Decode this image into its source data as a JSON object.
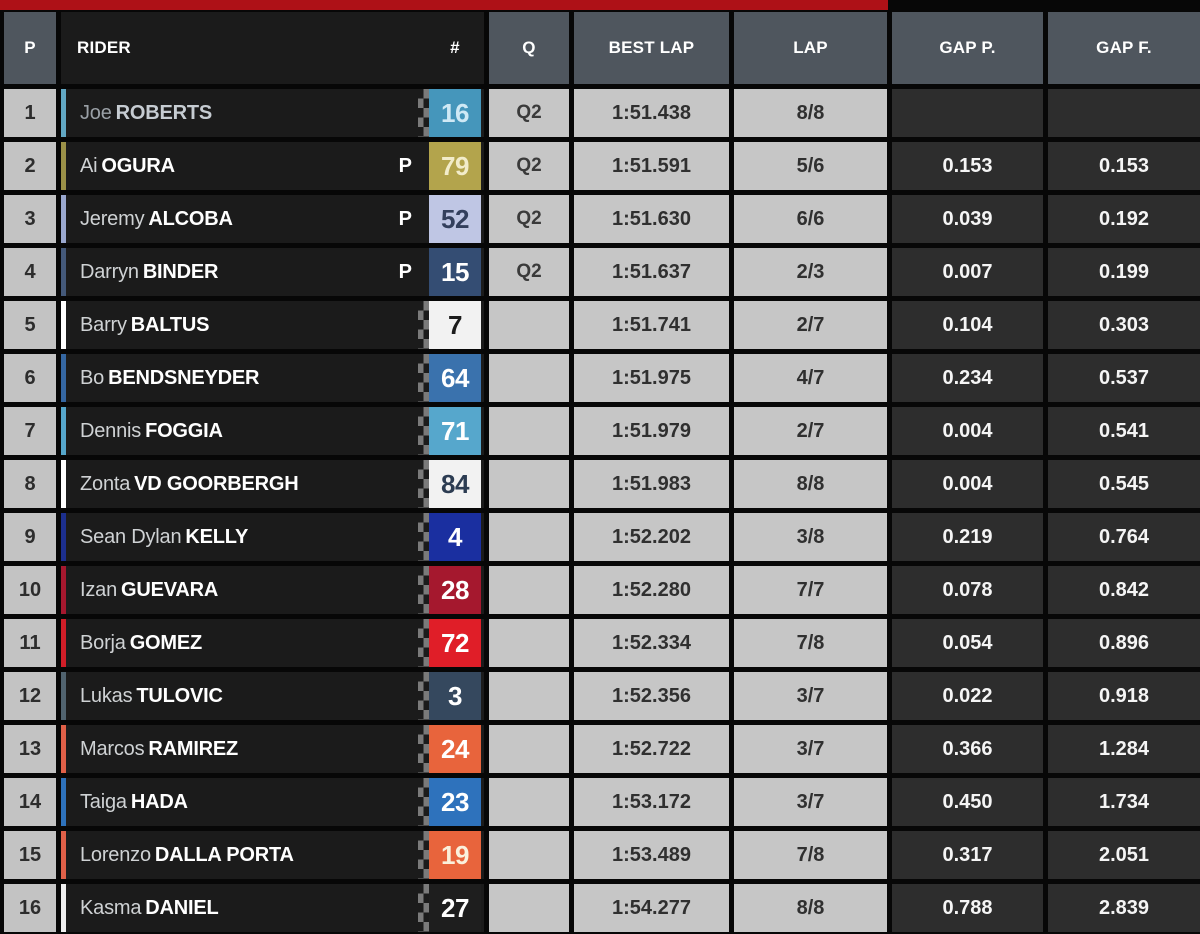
{
  "topbar": {
    "accent_color": "#ae1117"
  },
  "header": {
    "p": "P",
    "rider": "RIDER",
    "number": "#",
    "q": "Q",
    "best_lap": "BEST LAP",
    "lap": "LAP",
    "gap_prev": "GAP P.",
    "gap_first": "GAP F."
  },
  "colors": {
    "header_bg": "#4f565e",
    "row_dark_bg": "#1b1b1b",
    "light_cell_bg": "#c6c6c6",
    "leader_cell_bg": "#9b9b9b",
    "gap_cell_bg": "#2d2d2d",
    "position_cell_bg": "#c3c3c3"
  },
  "rows": [
    {
      "pos": "1",
      "first": "Joe",
      "last": "ROBERTS",
      "pit": "",
      "number": "16",
      "q": "Q2",
      "best_lap": "1:51.438",
      "lap": "8/8",
      "gap_p": "",
      "gap_f": "",
      "plate_bg": "#4596bb",
      "plate_fg": "#cfe9f5",
      "stripe": "#62a8c4",
      "leader": true,
      "checker": true
    },
    {
      "pos": "2",
      "first": "Ai",
      "last": "OGURA",
      "pit": "P",
      "number": "79",
      "q": "Q2",
      "best_lap": "1:51.591",
      "lap": "5/6",
      "gap_p": "0.153",
      "gap_f": "0.153",
      "plate_bg": "#b3a44c",
      "plate_fg": "#f2ecca",
      "stripe": "#9b9148",
      "leader": false,
      "checker": false
    },
    {
      "pos": "3",
      "first": "Jeremy",
      "last": "ALCOBA",
      "pit": "P",
      "number": "52",
      "q": "Q2",
      "best_lap": "1:51.630",
      "lap": "6/6",
      "gap_p": "0.039",
      "gap_f": "0.192",
      "plate_bg": "#bfc6e4",
      "plate_fg": "#333f5c",
      "stripe": "#9aa8cf",
      "leader": false,
      "checker": false
    },
    {
      "pos": "4",
      "first": "Darryn",
      "last": "BINDER",
      "pit": "P",
      "number": "15",
      "q": "Q2",
      "best_lap": "1:51.637",
      "lap": "2/3",
      "gap_p": "0.007",
      "gap_f": "0.199",
      "plate_bg": "#344d73",
      "plate_fg": "#ffffff",
      "stripe": "#44597a",
      "leader": false,
      "checker": false
    },
    {
      "pos": "5",
      "first": "Barry",
      "last": "BALTUS",
      "pit": "",
      "number": "7",
      "q": "",
      "best_lap": "1:51.741",
      "lap": "2/7",
      "gap_p": "0.104",
      "gap_f": "0.303",
      "plate_bg": "#f2f2f2",
      "plate_fg": "#1c1c1c",
      "stripe": "#ffffff",
      "leader": false,
      "checker": true
    },
    {
      "pos": "6",
      "first": "Bo",
      "last": "BENDSNEYDER",
      "pit": "",
      "number": "64",
      "q": "",
      "best_lap": "1:51.975",
      "lap": "4/7",
      "gap_p": "0.234",
      "gap_f": "0.537",
      "plate_bg": "#3a72ad",
      "plate_fg": "#ffffff",
      "stripe": "#3567a2",
      "leader": false,
      "checker": true
    },
    {
      "pos": "7",
      "first": "Dennis",
      "last": "FOGGIA",
      "pit": "",
      "number": "71",
      "q": "",
      "best_lap": "1:51.979",
      "lap": "2/7",
      "gap_p": "0.004",
      "gap_f": "0.541",
      "plate_bg": "#56a7cc",
      "plate_fg": "#ffffff",
      "stripe": "#56a7cc",
      "leader": false,
      "checker": true
    },
    {
      "pos": "8",
      "first": "Zonta",
      "last": "VD GOORBERGH",
      "pit": "",
      "number": "84",
      "q": "",
      "best_lap": "1:51.983",
      "lap": "8/8",
      "gap_p": "0.004",
      "gap_f": "0.545",
      "plate_bg": "#f2f2f2",
      "plate_fg": "#2c3c52",
      "stripe": "#ffffff",
      "leader": false,
      "checker": true
    },
    {
      "pos": "9",
      "first": "Sean Dylan",
      "last": "KELLY",
      "pit": "",
      "number": "4",
      "q": "",
      "best_lap": "1:52.202",
      "lap": "3/8",
      "gap_p": "0.219",
      "gap_f": "0.764",
      "plate_bg": "#1a2fa0",
      "plate_fg": "#ffffff",
      "stripe": "#1c2f8e",
      "leader": false,
      "checker": true
    },
    {
      "pos": "10",
      "first": "Izan",
      "last": "GUEVARA",
      "pit": "",
      "number": "28",
      "q": "",
      "best_lap": "1:52.280",
      "lap": "7/7",
      "gap_p": "0.078",
      "gap_f": "0.842",
      "plate_bg": "#a5182e",
      "plate_fg": "#ffffff",
      "stripe": "#a5182e",
      "leader": false,
      "checker": true
    },
    {
      "pos": "11",
      "first": "Borja",
      "last": "GOMEZ",
      "pit": "",
      "number": "72",
      "q": "",
      "best_lap": "1:52.334",
      "lap": "7/8",
      "gap_p": "0.054",
      "gap_f": "0.896",
      "plate_bg": "#e01e28",
      "plate_fg": "#ffffff",
      "stripe": "#d01e28",
      "leader": false,
      "checker": true
    },
    {
      "pos": "12",
      "first": "Lukas",
      "last": "TULOVIC",
      "pit": "",
      "number": "3",
      "q": "",
      "best_lap": "1:52.356",
      "lap": "3/7",
      "gap_p": "0.022",
      "gap_f": "0.918",
      "plate_bg": "#35485e",
      "plate_fg": "#ffffff",
      "stripe": "#51636f",
      "leader": false,
      "checker": true
    },
    {
      "pos": "13",
      "first": "Marcos",
      "last": "RAMIREZ",
      "pit": "",
      "number": "24",
      "q": "",
      "best_lap": "1:52.722",
      "lap": "3/7",
      "gap_p": "0.366",
      "gap_f": "1.284",
      "plate_bg": "#e8643c",
      "plate_fg": "#ffffff",
      "stripe": "#e06048",
      "leader": false,
      "checker": true
    },
    {
      "pos": "14",
      "first": "Taiga",
      "last": "HADA",
      "pit": "",
      "number": "23",
      "q": "",
      "best_lap": "1:53.172",
      "lap": "3/7",
      "gap_p": "0.450",
      "gap_f": "1.734",
      "plate_bg": "#2e72bc",
      "plate_fg": "#ffffff",
      "stripe": "#2e72bc",
      "leader": false,
      "checker": true
    },
    {
      "pos": "15",
      "first": "Lorenzo",
      "last": "DALLA PORTA",
      "pit": "",
      "number": "19",
      "q": "",
      "best_lap": "1:53.489",
      "lap": "7/8",
      "gap_p": "0.317",
      "gap_f": "2.051",
      "plate_bg": "#e8643c",
      "plate_fg": "#faf0dc",
      "stripe": "#e06048",
      "leader": false,
      "checker": true
    },
    {
      "pos": "16",
      "first": "Kasma",
      "last": "DANIEL",
      "pit": "",
      "number": "27",
      "q": "",
      "best_lap": "1:54.277",
      "lap": "8/8",
      "gap_p": "0.788",
      "gap_f": "2.839",
      "plate_bg": "#1e1e1e",
      "plate_fg": "#ffffff",
      "stripe": "#f0f0f0",
      "leader": false,
      "checker": true
    }
  ]
}
